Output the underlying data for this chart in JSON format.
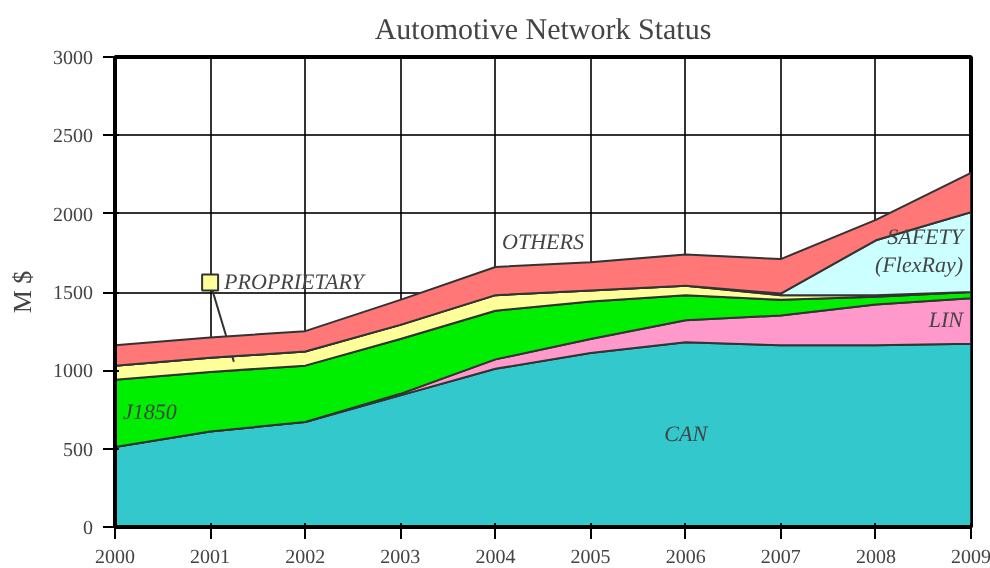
{
  "chart_data": {
    "type": "area",
    "stacked": true,
    "title": "Automotive Network Status",
    "ylabel": "M $",
    "x": [
      2000,
      2001,
      2002,
      2003,
      2004,
      2005,
      2006,
      2007,
      2008,
      2009
    ],
    "xlim": [
      2000,
      2009
    ],
    "xticks": [
      2000,
      2001,
      2002,
      2003,
      2004,
      2005,
      2006,
      2007,
      2008,
      2009
    ],
    "ylim": [
      0,
      3000
    ],
    "yticks": [
      0,
      500,
      1000,
      1500,
      2000,
      2500,
      3000
    ],
    "grid": true,
    "series": [
      {
        "name": "CAN",
        "color": "#33c8cc",
        "values": [
          510,
          610,
          670,
          840,
          1010,
          1110,
          1180,
          1160,
          1160,
          1170
        ]
      },
      {
        "name": "LIN",
        "color": "#ff99cc",
        "values": [
          0,
          0,
          0,
          10,
          60,
          90,
          140,
          190,
          260,
          290
        ]
      },
      {
        "name": "J1850",
        "color": "#00ee00",
        "values": [
          430,
          380,
          360,
          350,
          310,
          240,
          160,
          100,
          50,
          40
        ]
      },
      {
        "name": "PROPRIETARY",
        "color": "#ffff99",
        "values": [
          90,
          90,
          90,
          90,
          100,
          70,
          60,
          30,
          10,
          0
        ]
      },
      {
        "name": "SAFETY (FlexRay)",
        "color": "#ccffff",
        "values": [
          0,
          0,
          0,
          0,
          0,
          0,
          0,
          10,
          350,
          510
        ]
      },
      {
        "name": "OTHERS",
        "color": "#ff7777",
        "values": [
          130,
          130,
          130,
          160,
          180,
          180,
          200,
          220,
          130,
          250
        ]
      }
    ]
  }
}
